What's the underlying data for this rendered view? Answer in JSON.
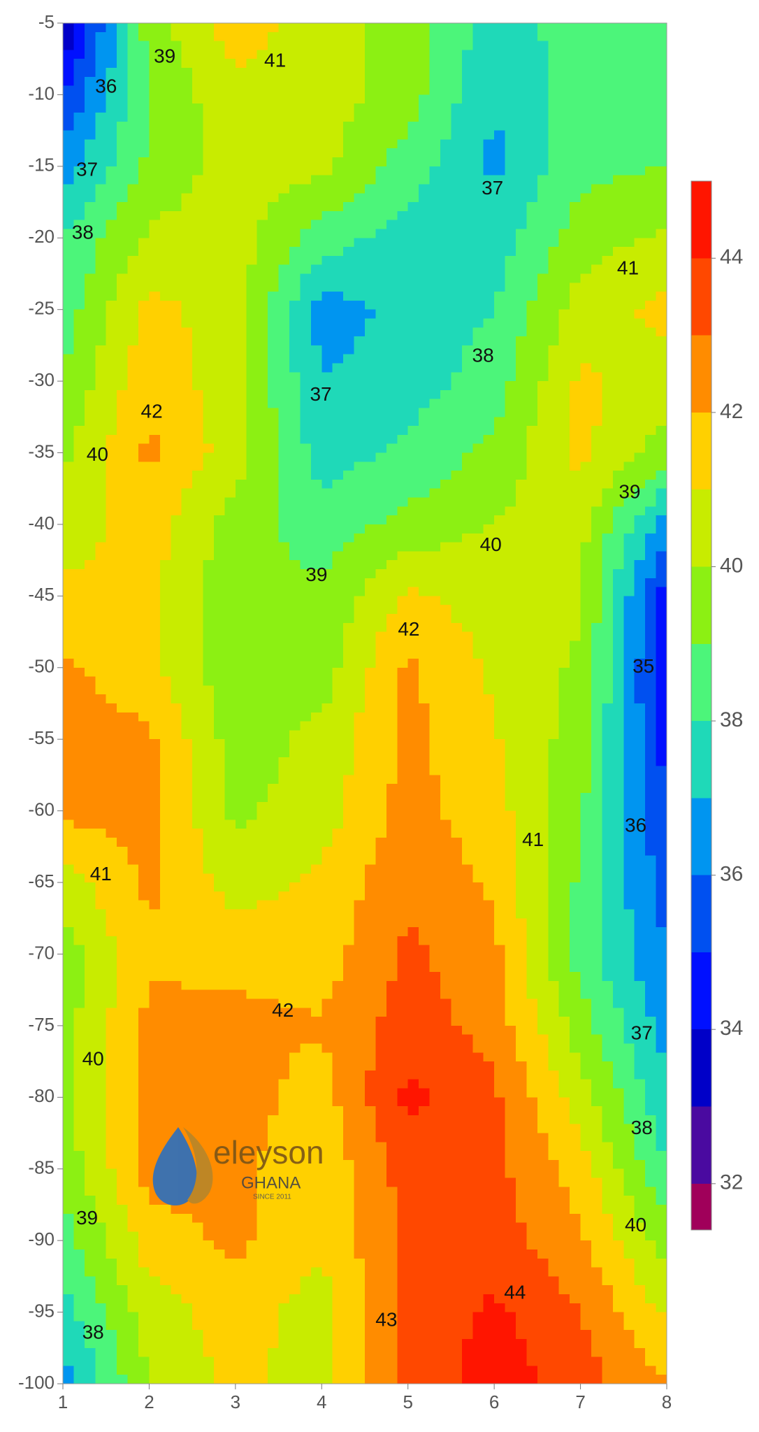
{
  "chart_data": {
    "type": "contour",
    "x": [
      1,
      2,
      3,
      4,
      5,
      6,
      7,
      8
    ],
    "y": [
      -5,
      -10,
      -15,
      -20,
      -25,
      -30,
      -35,
      -40,
      -45,
      -50,
      -55,
      -60,
      -65,
      -70,
      -75,
      -80,
      -85,
      -90,
      -95,
      -100
    ],
    "z": [
      [
        33,
        39.5,
        41.5,
        40.5,
        39.5,
        37.5,
        38.5,
        38.5
      ],
      [
        35,
        39,
        40.8,
        40.5,
        39.5,
        37,
        38.5,
        38.5
      ],
      [
        36.5,
        39.2,
        40.5,
        40.3,
        38.5,
        36.8,
        38.7,
        39
      ],
      [
        38,
        40.2,
        40.5,
        38.5,
        37.5,
        37.5,
        39.5,
        40.2
      ],
      [
        38.5,
        41.3,
        40.5,
        36.5,
        37.3,
        38,
        40.5,
        41.3
      ],
      [
        39,
        41.8,
        40.3,
        37,
        37.5,
        38.5,
        41.2,
        40.5
      ],
      [
        39.8,
        42.2,
        40.5,
        37.5,
        38.2,
        39.3,
        41.3,
        39.5
      ],
      [
        40.5,
        41.5,
        39.5,
        38.5,
        39.3,
        40.1,
        40.3,
        36.5
      ],
      [
        41.2,
        41.2,
        39.3,
        39.2,
        41.2,
        40.5,
        40.2,
        34.5
      ],
      [
        42.2,
        41.3,
        39.2,
        39.5,
        42.2,
        40.8,
        39.8,
        34.2
      ],
      [
        42.5,
        42.2,
        39.5,
        40.3,
        42.3,
        41.1,
        39.5,
        34.5
      ],
      [
        42.3,
        42.3,
        39.8,
        40.5,
        42.4,
        41.4,
        39.2,
        35
      ],
      [
        40.5,
        42.2,
        40.5,
        41.2,
        42.8,
        41.8,
        38.8,
        35.5
      ],
      [
        39.5,
        41.8,
        41.8,
        41.5,
        43.2,
        42.3,
        38.5,
        36
      ],
      [
        39.5,
        42.3,
        42.2,
        42.1,
        43.5,
        42.6,
        39.5,
        36.5
      ],
      [
        39.8,
        42.4,
        42.5,
        41.5,
        44.3,
        43.2,
        40.5,
        37.2
      ],
      [
        39.3,
        42.4,
        42.3,
        41.2,
        43.5,
        43.3,
        41.5,
        38
      ],
      [
        38.5,
        41.5,
        42.2,
        41.2,
        43.2,
        43.5,
        42.2,
        39.5
      ],
      [
        37.5,
        40.5,
        41.5,
        40.5,
        43.3,
        44.2,
        43,
        40.8
      ],
      [
        36.5,
        40,
        41.3,
        40.5,
        43.2,
        44.6,
        43.5,
        42
      ]
    ],
    "xlim": [
      1,
      8
    ],
    "ylim": [
      -100,
      -5
    ],
    "xticks": [
      1,
      2,
      3,
      4,
      5,
      6,
      7,
      8
    ],
    "yticks": [
      -5,
      -10,
      -15,
      -20,
      -25,
      -30,
      -35,
      -40,
      -45,
      -50,
      -55,
      -60,
      -65,
      -70,
      -75,
      -80,
      -85,
      -90,
      -95,
      -100
    ],
    "levels": [
      32,
      33,
      34,
      35,
      36,
      37,
      38,
      39,
      40,
      41,
      42,
      43,
      44
    ],
    "zlim": [
      31.4,
      45
    ],
    "colors": [
      "#a0005a",
      "#4a0aa0",
      "#0000c8",
      "#0010ff",
      "#0050f0",
      "#0095f0",
      "#1fd9b8",
      "#4cf57a",
      "#8cf013",
      "#c8ec00",
      "#ffd000",
      "#ff8c00",
      "#ff4800",
      "#ff1500"
    ],
    "colorbar_ticks": [
      32,
      34,
      36,
      38,
      40,
      42,
      44
    ],
    "contour_labels": [
      {
        "value": 39,
        "x": 2.18,
        "y": -7.4
      },
      {
        "value": 41,
        "x": 3.46,
        "y": -7.7
      },
      {
        "value": 36,
        "x": 1.5,
        "y": -9.5
      },
      {
        "value": 37,
        "x": 5.98,
        "y": -16.6
      },
      {
        "value": 37,
        "x": 1.28,
        "y": -15.3
      },
      {
        "value": 38,
        "x": 1.23,
        "y": -19.7
      },
      {
        "value": 41,
        "x": 7.55,
        "y": -22.2
      },
      {
        "value": 38,
        "x": 5.87,
        "y": -28.3
      },
      {
        "value": 37,
        "x": 3.99,
        "y": -31
      },
      {
        "value": 42,
        "x": 2.03,
        "y": -32.2
      },
      {
        "value": 40,
        "x": 1.4,
        "y": -35.2
      },
      {
        "value": 39,
        "x": 7.57,
        "y": -37.8
      },
      {
        "value": 40,
        "x": 5.96,
        "y": -41.5
      },
      {
        "value": 39,
        "x": 3.94,
        "y": -43.6
      },
      {
        "value": 42,
        "x": 5.01,
        "y": -47.4
      },
      {
        "value": 35,
        "x": 7.73,
        "y": -50
      },
      {
        "value": 36,
        "x": 7.64,
        "y": -61.1
      },
      {
        "value": 41,
        "x": 6.45,
        "y": -62.1
      },
      {
        "value": 41,
        "x": 1.44,
        "y": -64.5
      },
      {
        "value": 42,
        "x": 3.55,
        "y": -74
      },
      {
        "value": 37,
        "x": 7.71,
        "y": -75.6
      },
      {
        "value": 40,
        "x": 1.35,
        "y": -77.4
      },
      {
        "value": 38,
        "x": 7.71,
        "y": -82.2
      },
      {
        "value": 39,
        "x": 1.28,
        "y": -88.5
      },
      {
        "value": 40,
        "x": 7.64,
        "y": -89
      },
      {
        "value": 44,
        "x": 6.24,
        "y": -93.7
      },
      {
        "value": 43,
        "x": 4.75,
        "y": -95.6
      },
      {
        "value": 38,
        "x": 1.35,
        "y": -96.5
      }
    ]
  },
  "watermark": {
    "brand": "eleyson",
    "country": "GHANA",
    "since": "SINCE 2011"
  }
}
